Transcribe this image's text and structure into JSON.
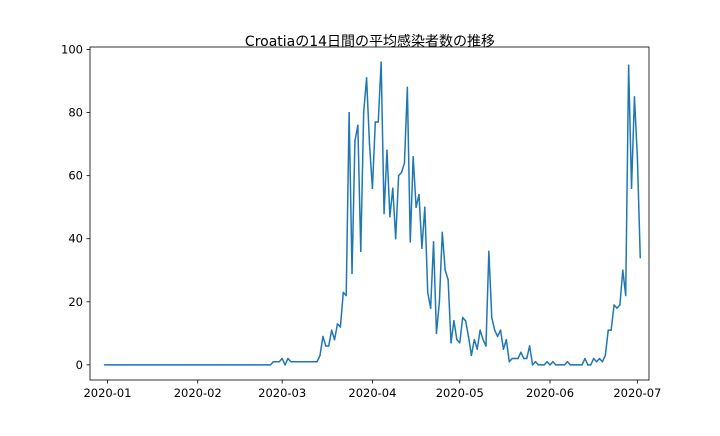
{
  "chart_data": {
    "type": "line",
    "title": "Croatiaの14日間の平均感染者数の推移",
    "xlabel": "",
    "ylabel": "",
    "x_start": "2019-12-31",
    "x_step_days": 1,
    "xlim": [
      "2019-12-26",
      "2020-07-05"
    ],
    "ylim": [
      -4.8,
      100.8
    ],
    "x_ticks": [
      "2020-01",
      "2020-02",
      "2020-03",
      "2020-04",
      "2020-05",
      "2020-06",
      "2020-07"
    ],
    "y_ticks": [
      "0",
      "20",
      "40",
      "60",
      "80",
      "100"
    ],
    "grid": false,
    "series": [
      {
        "color": "#1f77b4",
        "values": [
          0,
          0,
          0,
          0,
          0,
          0,
          0,
          0,
          0,
          0,
          0,
          0,
          0,
          0,
          0,
          0,
          0,
          0,
          0,
          0,
          0,
          0,
          0,
          0,
          0,
          0,
          0,
          0,
          0,
          0,
          0,
          0,
          0,
          0,
          0,
          0,
          0,
          0,
          0,
          0,
          0,
          0,
          0,
          0,
          0,
          0,
          0,
          0,
          0,
          0,
          0,
          0,
          0,
          0,
          0,
          0,
          0,
          0,
          1,
          1,
          1,
          2,
          0,
          2,
          1,
          1,
          1,
          1,
          1,
          1,
          1,
          1,
          1,
          1,
          3,
          9,
          6,
          6,
          11,
          8,
          13,
          12,
          23,
          22,
          80,
          29,
          71,
          76,
          36,
          80,
          91,
          70,
          56,
          77,
          77,
          96,
          48,
          68,
          47,
          56,
          40,
          60,
          61,
          64,
          88,
          39,
          66,
          50,
          54,
          37,
          50,
          23,
          18,
          39,
          10,
          20,
          42,
          30,
          27,
          7,
          14,
          8,
          7,
          15,
          14,
          9,
          3,
          8,
          5,
          11,
          8,
          6,
          36,
          15,
          11,
          9,
          11,
          5,
          8,
          1,
          2,
          2,
          2,
          4,
          2,
          2,
          6,
          0,
          1,
          0,
          0,
          0,
          1,
          0,
          1,
          0,
          0,
          0,
          0,
          1,
          0,
          0,
          0,
          0,
          0,
          2,
          0,
          0,
          2,
          1,
          2,
          1,
          3,
          11,
          11,
          19,
          18,
          19,
          30,
          22,
          95,
          56,
          85,
          66,
          34
        ]
      }
    ]
  }
}
